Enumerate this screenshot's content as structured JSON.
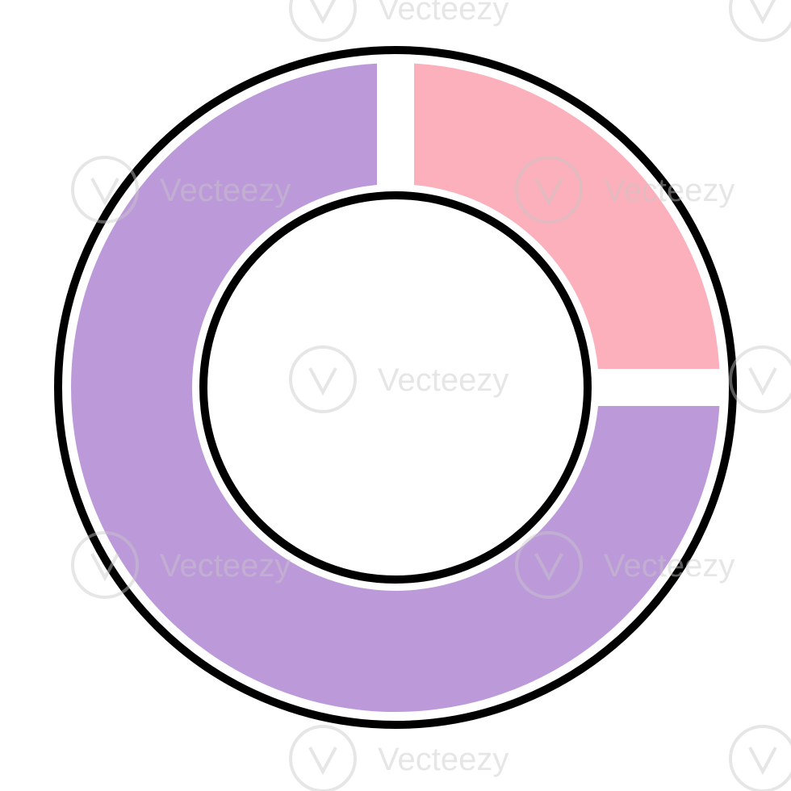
{
  "chart_data": {
    "type": "pie",
    "variant": "donut",
    "title": "",
    "slices": [
      {
        "value": 25,
        "color": "#fcb0bc"
      },
      {
        "value": 75,
        "color": "#bc9ada"
      }
    ],
    "start_angle_deg": 0,
    "direction": "clockwise",
    "outline_color": "#000000",
    "gap_color": "#ffffff"
  },
  "watermark": {
    "text": "Vecteezy",
    "icon": "vecteezy-v-logo-icon",
    "color": "#c8c8c8"
  }
}
